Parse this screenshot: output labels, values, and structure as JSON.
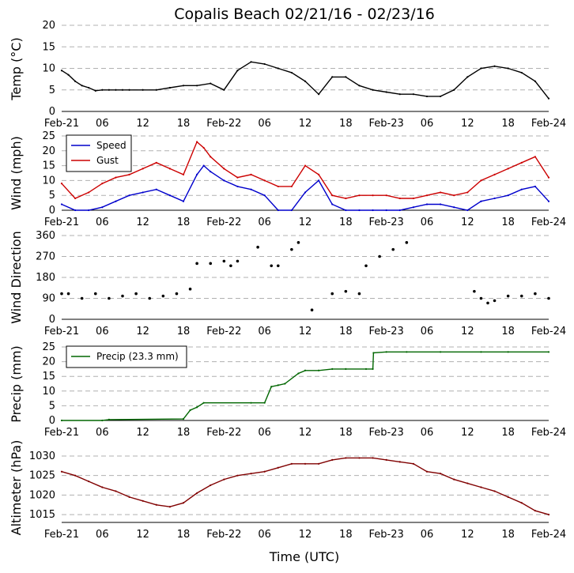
{
  "chart_data": {
    "title": "Copalis Beach 02/21/16 - 02/23/16",
    "xlabel": "Time (UTC)",
    "x_ticks": [
      "Feb-21",
      "06",
      "12",
      "18",
      "Feb-22",
      "06",
      "12",
      "18",
      "Feb-23",
      "06",
      "12",
      "18",
      "Feb-24"
    ],
    "x_unit": "hours since 2016-02-21 00:00 UTC",
    "panels": [
      {
        "id": "temp",
        "type": "line",
        "ylabel": "Temp (°C)",
        "ylim": [
          0,
          20
        ],
        "yticks": [
          0,
          5,
          10,
          15,
          20
        ],
        "legend": null,
        "series": [
          {
            "name": "Temp",
            "color": "#000000",
            "x": [
              0,
              1,
              2,
              3,
              4,
              5,
              6,
              7,
              8,
              9,
              10,
              12,
              14,
              16,
              18,
              20,
              22,
              24,
              26,
              28,
              30,
              32,
              34,
              36,
              38,
              40,
              42,
              44,
              46,
              48,
              50,
              52,
              54,
              56,
              58,
              60,
              62,
              64,
              66,
              68,
              70,
              72
            ],
            "y": [
              9.5,
              8.5,
              7,
              6,
              5.5,
              4.8,
              5,
              5,
              5,
              5,
              5,
              5,
              5,
              5.5,
              6,
              6,
              6.5,
              5,
              9.5,
              11.5,
              11,
              10,
              9,
              7,
              4,
              8,
              8,
              6,
              5,
              4.5,
              4,
              4,
              3.5,
              3.5,
              5,
              8,
              10,
              10.5,
              10,
              9,
              7,
              3
            ]
          }
        ]
      },
      {
        "id": "wind",
        "type": "line",
        "ylabel": "Wind (mph)",
        "ylim": [
          0,
          25
        ],
        "yticks": [
          0,
          5,
          10,
          15,
          20,
          25
        ],
        "legend": "top-left",
        "series": [
          {
            "name": "Speed",
            "color": "#0000cc",
            "x": [
              0,
              2,
              4,
              6,
              8,
              10,
              12,
              14,
              16,
              18,
              20,
              21,
              22,
              24,
              26,
              28,
              30,
              32,
              34,
              36,
              38,
              40,
              42,
              44,
              46,
              48,
              50,
              52,
              54,
              56,
              58,
              60,
              62,
              64,
              66,
              68,
              70,
              72
            ],
            "y": [
              2,
              0,
              0,
              1,
              3,
              5,
              6,
              7,
              5,
              3,
              12,
              15,
              13,
              10,
              8,
              7,
              5,
              0,
              0,
              6,
              10,
              2,
              0,
              0,
              0,
              0,
              0,
              1,
              2,
              2,
              1,
              0,
              3,
              4,
              5,
              7,
              8,
              3
            ]
          },
          {
            "name": "Gust",
            "color": "#cc0000",
            "x": [
              0,
              2,
              4,
              6,
              8,
              10,
              12,
              14,
              16,
              18,
              20,
              21,
              22,
              24,
              26,
              28,
              30,
              32,
              34,
              36,
              38,
              40,
              42,
              44,
              46,
              48,
              50,
              52,
              54,
              56,
              58,
              60,
              62,
              64,
              66,
              68,
              70,
              72
            ],
            "y": [
              9,
              4,
              6,
              9,
              11,
              12,
              14,
              16,
              14,
              12,
              23,
              21,
              18,
              14,
              11,
              12,
              10,
              8,
              8,
              15,
              12,
              5,
              4,
              5,
              5,
              5,
              4,
              4,
              5,
              6,
              5,
              6,
              10,
              12,
              14,
              16,
              18,
              11
            ]
          }
        ]
      },
      {
        "id": "direction",
        "type": "scatter",
        "ylabel": "Wind Direction",
        "ylim": [
          0,
          360
        ],
        "yticks": [
          0,
          90,
          180,
          270,
          360
        ],
        "legend": null,
        "series": [
          {
            "name": "Direction",
            "color": "#ff9900",
            "x": [
              0,
              1,
              3,
              5,
              7,
              9,
              11,
              13,
              15,
              17,
              19,
              20,
              22,
              24,
              25,
              26,
              29,
              31,
              32,
              34,
              35,
              37,
              40,
              42,
              44,
              45,
              47,
              49,
              51,
              61,
              62,
              63,
              64,
              66,
              68,
              70,
              72
            ],
            "y": [
              110,
              110,
              90,
              110,
              90,
              100,
              110,
              90,
              100,
              110,
              130,
              240,
              240,
              250,
              230,
              250,
              310,
              230,
              230,
              300,
              330,
              40,
              110,
              120,
              110,
              230,
              270,
              300,
              330,
              120,
              90,
              70,
              80,
              100,
              100,
              110,
              90
            ]
          }
        ]
      },
      {
        "id": "precip",
        "type": "line",
        "ylabel": "Precip (mm)",
        "ylim": [
          0,
          25
        ],
        "yticks": [
          0,
          5,
          10,
          15,
          20,
          25
        ],
        "legend": "top-left",
        "series": [
          {
            "name": "Precip (23.3 mm)",
            "color": "#006600",
            "x": [
              0,
              6,
              7,
              18,
              19,
              20,
              21,
              28,
              30,
              31,
              32,
              33,
              35,
              36,
              38,
              40,
              42,
              45,
              46,
              46.1,
              48,
              51,
              56,
              62,
              66,
              72
            ],
            "y": [
              0,
              0,
              0.3,
              0.5,
              3.5,
              4.5,
              6,
              6,
              6,
              11.5,
              12,
              12.5,
              16,
              17,
              17,
              17.5,
              17.5,
              17.5,
              17.5,
              23,
              23.3,
              23.3,
              23.3,
              23.3,
              23.3,
              23.3
            ]
          }
        ]
      },
      {
        "id": "altimeter",
        "type": "line",
        "ylabel": "Altimeter (hPa)",
        "ylim": [
          1013,
          1031
        ],
        "yticks": [
          1015,
          1020,
          1025,
          1030
        ],
        "legend": null,
        "series": [
          {
            "name": "Altimeter",
            "color": "#800000",
            "x": [
              0,
              2,
              4,
              6,
              8,
              10,
              12,
              14,
              16,
              18,
              20,
              22,
              24,
              26,
              28,
              30,
              32,
              34,
              36,
              38,
              40,
              42,
              44,
              46,
              48,
              50,
              52,
              54,
              56,
              58,
              60,
              62,
              64,
              66,
              68,
              70,
              72
            ],
            "y": [
              1026,
              1025,
              1023.5,
              1022,
              1021,
              1019.5,
              1018.5,
              1017.5,
              1017,
              1018,
              1020.5,
              1022.5,
              1024,
              1025,
              1025.5,
              1026,
              1027,
              1028,
              1028,
              1028,
              1029,
              1029.5,
              1029.5,
              1029.5,
              1029,
              1028.5,
              1028,
              1026,
              1025.5,
              1024,
              1023,
              1022,
              1021,
              1019.5,
              1018,
              1016,
              1015
            ]
          }
        ]
      }
    ]
  }
}
